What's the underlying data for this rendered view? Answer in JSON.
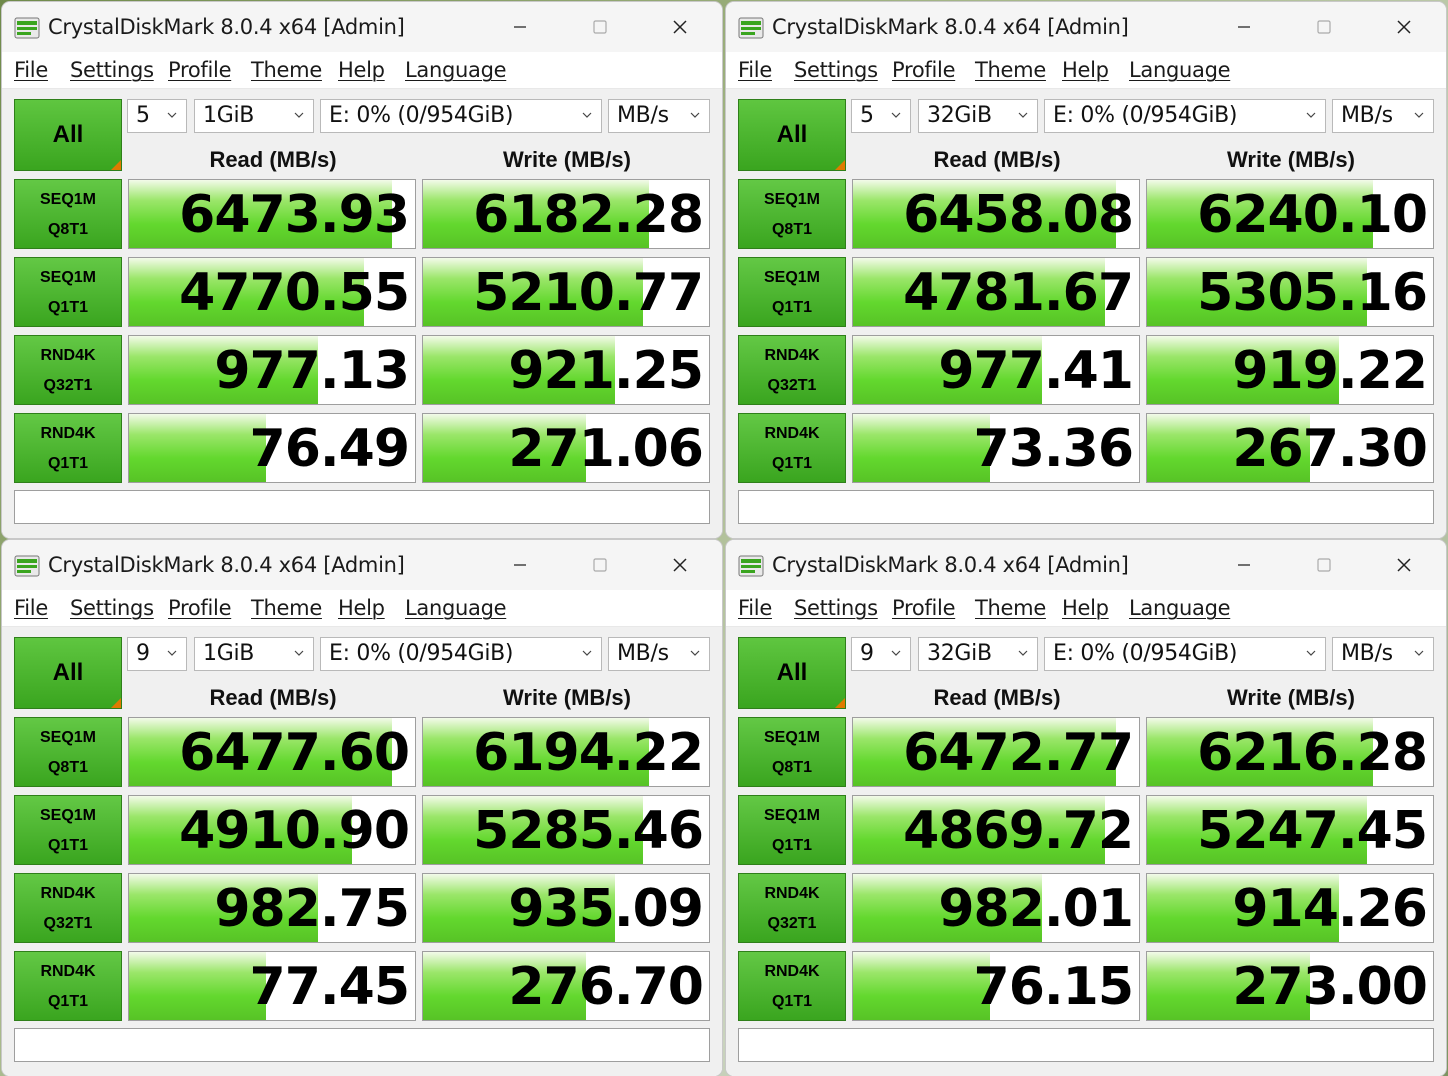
{
  "app": {
    "title": "CrystalDiskMark 8.0.4 x64 [Admin]",
    "menu": [
      "File",
      "Settings",
      "Profile",
      "Theme",
      "Help",
      "Language"
    ],
    "all_label": "All",
    "read_header": "Read (MB/s)",
    "write_header": "Write (MB/s)",
    "icons": {
      "app": "crystaldiskmark-icon",
      "min": "minimize-icon",
      "max": "maximize-icon",
      "close": "close-icon",
      "chevron": "chevron-down-icon"
    },
    "colors": {
      "accent_green": "#3aa51f",
      "bar_green": "#63d82e",
      "corner_orange": "#e07a00"
    }
  },
  "windows": [
    {
      "count": "5",
      "size": "1GiB",
      "drive": "E: 0% (0/954GiB)",
      "unit": "MB/s",
      "rows": [
        {
          "label1": "SEQ1M",
          "label2": "Q8T1",
          "read": "6473.93",
          "write": "6182.28",
          "read_fill": 0.92,
          "write_fill": 0.79
        },
        {
          "label1": "SEQ1M",
          "label2": "Q1T1",
          "read": "4770.55",
          "write": "5210.77",
          "read_fill": 0.82,
          "write_fill": 0.77
        },
        {
          "label1": "RND4K",
          "label2": "Q32T1",
          "read": "977.13",
          "write": "921.25",
          "read_fill": 0.66,
          "write_fill": 0.67
        },
        {
          "label1": "RND4K",
          "label2": "Q1T1",
          "read": "76.49",
          "write": "271.06",
          "read_fill": 0.48,
          "write_fill": 0.57
        }
      ]
    },
    {
      "count": "5",
      "size": "32GiB",
      "drive": "E: 0% (0/954GiB)",
      "unit": "MB/s",
      "rows": [
        {
          "label1": "SEQ1M",
          "label2": "Q8T1",
          "read": "6458.08",
          "write": "6240.10",
          "read_fill": 0.92,
          "write_fill": 0.79
        },
        {
          "label1": "SEQ1M",
          "label2": "Q1T1",
          "read": "4781.67",
          "write": "5305.16",
          "read_fill": 0.88,
          "write_fill": 0.77
        },
        {
          "label1": "RND4K",
          "label2": "Q32T1",
          "read": "977.41",
          "write": "919.22",
          "read_fill": 0.66,
          "write_fill": 0.67
        },
        {
          "label1": "RND4K",
          "label2": "Q1T1",
          "read": "73.36",
          "write": "267.30",
          "read_fill": 0.48,
          "write_fill": 0.57
        }
      ]
    },
    {
      "count": "9",
      "size": "1GiB",
      "drive": "E: 0% (0/954GiB)",
      "unit": "MB/s",
      "rows": [
        {
          "label1": "SEQ1M",
          "label2": "Q8T1",
          "read": "6477.60",
          "write": "6194.22",
          "read_fill": 0.92,
          "write_fill": 0.79
        },
        {
          "label1": "SEQ1M",
          "label2": "Q1T1",
          "read": "4910.90",
          "write": "5285.46",
          "read_fill": 0.78,
          "write_fill": 0.77
        },
        {
          "label1": "RND4K",
          "label2": "Q32T1",
          "read": "982.75",
          "write": "935.09",
          "read_fill": 0.66,
          "write_fill": 0.67
        },
        {
          "label1": "RND4K",
          "label2": "Q1T1",
          "read": "77.45",
          "write": "276.70",
          "read_fill": 0.48,
          "write_fill": 0.57
        }
      ]
    },
    {
      "count": "9",
      "size": "32GiB",
      "drive": "E: 0% (0/954GiB)",
      "unit": "MB/s",
      "rows": [
        {
          "label1": "SEQ1M",
          "label2": "Q8T1",
          "read": "6472.77",
          "write": "6216.28",
          "read_fill": 0.92,
          "write_fill": 0.79
        },
        {
          "label1": "SEQ1M",
          "label2": "Q1T1",
          "read": "4869.72",
          "write": "5247.45",
          "read_fill": 0.88,
          "write_fill": 0.77
        },
        {
          "label1": "RND4K",
          "label2": "Q32T1",
          "read": "982.01",
          "write": "914.26",
          "read_fill": 0.66,
          "write_fill": 0.67
        },
        {
          "label1": "RND4K",
          "label2": "Q1T1",
          "read": "76.15",
          "write": "273.00",
          "read_fill": 0.48,
          "write_fill": 0.57
        }
      ]
    }
  ]
}
